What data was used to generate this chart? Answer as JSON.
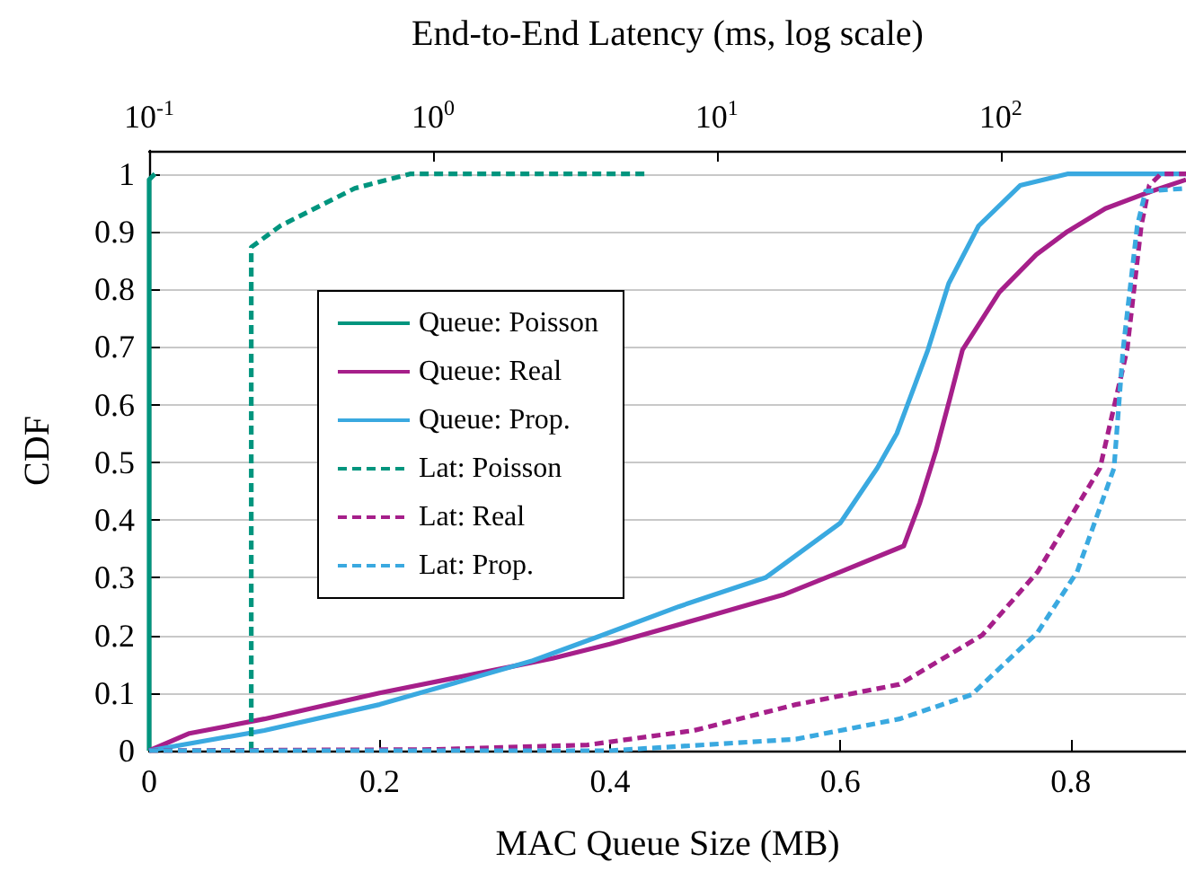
{
  "chart_data": {
    "type": "line",
    "xlabel": "MAC Queue Size (MB)",
    "ylabel": "CDF",
    "x2label": "End-to-End Latency (ms, log scale)",
    "xlim": [
      0,
      0.9
    ],
    "xticks": [
      0,
      0.2,
      0.4,
      0.6,
      0.8
    ],
    "x2lim": [
      0.1,
      450
    ],
    "x2ticks": [
      {
        "value": 0.1,
        "label": "10$^{-1}$"
      },
      {
        "value": 1,
        "label": "10$^{0}$"
      },
      {
        "value": 10,
        "label": "10$^{1}$"
      },
      {
        "value": 100,
        "label": "10$^{2}$"
      }
    ],
    "log": "x2",
    "ylim": [
      0,
      1.04
    ],
    "yticks": [
      0,
      0.1,
      0.2,
      0.3,
      0.4,
      0.5,
      0.6,
      0.7,
      0.8,
      0.9,
      1
    ],
    "grid": "y",
    "legend": "center left",
    "marker": "none",
    "series": [
      {
        "name": "Queue: Poisson",
        "color": "#00957e",
        "line_style": "solid",
        "x": [
          0,
          0,
          0.005
        ],
        "values": [
          0,
          0.99,
          1
        ]
      },
      {
        "name": "Queue: Real",
        "color": "#a61f8a",
        "line_style": "solid",
        "x": [
          0,
          0.035,
          0.1,
          0.2,
          0.3,
          0.35,
          0.4,
          0.48,
          0.55,
          0.6,
          0.655,
          0.669,
          0.683,
          0.695,
          0.706,
          0.738,
          0.77,
          0.797,
          0.83,
          0.87,
          0.9
        ],
        "values": [
          0,
          0.03,
          0.055,
          0.1,
          0.14,
          0.16,
          0.185,
          0.23,
          0.27,
          0.31,
          0.355,
          0.43,
          0.52,
          0.61,
          0.695,
          0.795,
          0.86,
          0.9,
          0.94,
          0.97,
          0.99
        ]
      },
      {
        "name": "Queue: Prop.",
        "color": "#3aa9e0",
        "line_style": "solid",
        "x": [
          0,
          0.1,
          0.2,
          0.333,
          0.393,
          0.46,
          0.535,
          0.6,
          0.632,
          0.649,
          0.676,
          0.694,
          0.72,
          0.756,
          0.797,
          0.9
        ],
        "values": [
          0,
          0.035,
          0.08,
          0.156,
          0.2,
          0.25,
          0.3,
          0.395,
          0.49,
          0.55,
          0.695,
          0.81,
          0.91,
          0.98,
          1,
          1
        ]
      },
      {
        "name": "Lat: Poisson",
        "color": "#00957e",
        "line_style": "dashed",
        "axis": "x2",
        "x": [
          0.229,
          0.229,
          0.29,
          0.53,
          0.83,
          5.6
        ],
        "values": [
          0,
          0.873,
          0.91,
          0.975,
          1,
          1
        ]
      },
      {
        "name": "Lat: Real",
        "color": "#a61f8a",
        "line_style": "dashed",
        "axis": "x2",
        "x": [
          0.1,
          1,
          3.5,
          8.3,
          19,
          44,
          86,
          135,
          224,
          279,
          313,
          334,
          367,
          450
        ],
        "values": [
          0,
          0.002,
          0.01,
          0.035,
          0.08,
          0.115,
          0.2,
          0.31,
          0.49,
          0.695,
          0.91,
          0.98,
          1,
          1
        ]
      },
      {
        "name": "Lat: Prop.",
        "color": "#3aa9e0",
        "line_style": "dashed",
        "axis": "x2",
        "x": [
          0.1,
          4.2,
          19,
          44,
          79,
          135,
          186,
          251,
          270,
          303,
          324,
          450
        ],
        "values": [
          0,
          0,
          0.02,
          0.055,
          0.097,
          0.205,
          0.31,
          0.49,
          0.695,
          0.91,
          0.97,
          0.975
        ]
      }
    ]
  }
}
